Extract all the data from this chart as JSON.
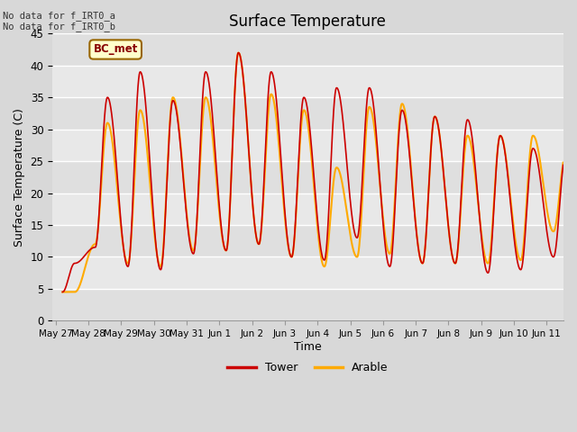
{
  "title": "Surface Temperature",
  "xlabel": "Time",
  "ylabel": "Surface Temperature (C)",
  "ylim": [
    0,
    45
  ],
  "yticks": [
    0,
    5,
    10,
    15,
    20,
    25,
    30,
    35,
    40,
    45
  ],
  "fig_facecolor": "#d8d8d8",
  "plot_bg_color": "#e8e8e8",
  "annotation_text": "No data for f_IRT0_a\nNo data for f_IRT0_b",
  "legend_labels": [
    "Tower",
    "Arable"
  ],
  "legend_colors": [
    "#cc0000",
    "#ffaa00"
  ],
  "box_label": "BC_met",
  "box_facecolor": "#ffffcc",
  "box_edgecolor": "#996600",
  "box_textcolor": "#880000",
  "xtick_labels": [
    "May 27",
    "May 28",
    "May 29",
    "May 30",
    "May 31",
    "Jun 1",
    "Jun 2",
    "Jun 3",
    "Jun 4",
    "Jun 5",
    "Jun 6",
    "Jun 7",
    "Jun 8",
    "Jun 9",
    "Jun 10",
    "Jun 11"
  ],
  "tower_peaks": [
    9.0,
    35.0,
    39.0,
    34.5,
    39.0,
    42.0,
    39.0,
    35.0,
    36.5,
    36.5,
    33.0,
    32.0,
    31.5,
    29.0,
    27.0,
    26.0
  ],
  "tower_troughs": [
    4.5,
    11.5,
    8.5,
    8.0,
    10.5,
    11.0,
    12.0,
    10.0,
    9.5,
    13.0,
    8.5,
    9.0,
    9.0,
    7.5,
    8.0,
    10.0
  ],
  "arable_peaks": [
    4.5,
    31.0,
    33.0,
    35.0,
    35.0,
    42.0,
    35.5,
    33.0,
    24.0,
    33.5,
    34.0,
    32.0,
    29.0,
    29.0,
    29.0,
    26.0
  ],
  "arable_troughs": [
    4.5,
    12.0,
    9.0,
    8.5,
    11.0,
    11.0,
    12.0,
    10.0,
    8.5,
    10.0,
    10.5,
    9.0,
    9.0,
    9.0,
    9.5,
    14.0
  ]
}
